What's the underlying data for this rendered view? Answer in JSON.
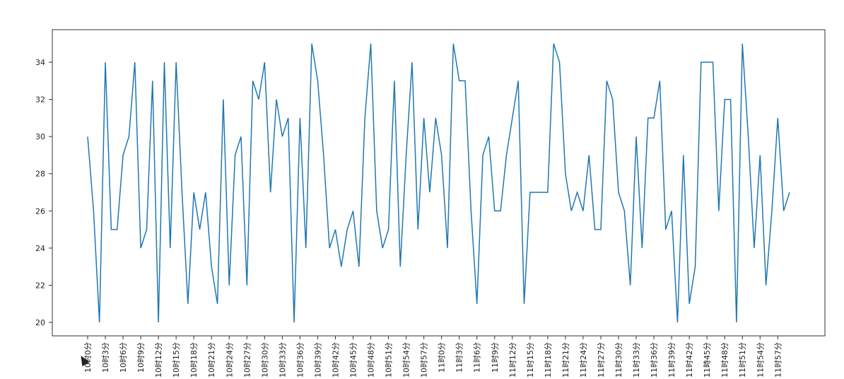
{
  "chart_data": {
    "type": "line",
    "title": "",
    "xlabel": "",
    "ylabel": "",
    "ylim": [
      19.3,
      35.7
    ],
    "yticks": [
      20,
      22,
      24,
      26,
      28,
      30,
      32,
      34
    ],
    "grid": false,
    "line_color": "#1f77b4",
    "x_tick_labels": [
      "10时0分",
      "10时3分",
      "10时6分",
      "10时9分",
      "10时12分",
      "10时15分",
      "10时18分",
      "10时21分",
      "10时24分",
      "10时27分",
      "10时30分",
      "10时33分",
      "10时36分",
      "10时39分",
      "10时42分",
      "10时45分",
      "10时48分",
      "10时51分",
      "10时54分",
      "10时57分",
      "11时0分",
      "11时3分",
      "11时6分",
      "11时9分",
      "11时12分",
      "11时15分",
      "11时18分",
      "11时21分",
      "11时24分",
      "11时27分",
      "11时30分",
      "11时33分",
      "11时36分",
      "11时39分",
      "11时42分",
      "11時45分",
      "11时48分",
      "11时51分",
      "11时54分",
      "11时57分"
    ],
    "series": [
      {
        "values": [
          30,
          26,
          20,
          34,
          25,
          25,
          29,
          30,
          34,
          24,
          25,
          33,
          20,
          34,
          24,
          34,
          27,
          21,
          27,
          25,
          27,
          23,
          21,
          32,
          22,
          29,
          30,
          22,
          33,
          32,
          34,
          27,
          32,
          30,
          31,
          20,
          31,
          24,
          35,
          33,
          29,
          24,
          25,
          23,
          25,
          26,
          23,
          31,
          35,
          26,
          24,
          25,
          33,
          23,
          29,
          34,
          25,
          31,
          27,
          31,
          29,
          24,
          35,
          33,
          33,
          26,
          21,
          29,
          30,
          26,
          26,
          29,
          31,
          33,
          21,
          27,
          27,
          27,
          27,
          35,
          34,
          28,
          26,
          27,
          26,
          29,
          25,
          25,
          33,
          32,
          27,
          26,
          22,
          30,
          24,
          31,
          31,
          33,
          25,
          26,
          20,
          29,
          21,
          23,
          34,
          34,
          34,
          26,
          32,
          32,
          20,
          35,
          30,
          24,
          29,
          22,
          26,
          31,
          26,
          27
        ]
      }
    ]
  }
}
